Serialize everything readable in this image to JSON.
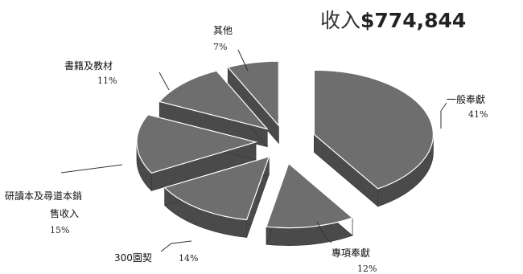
{
  "chart_data": {
    "type": "pie",
    "title_prefix": "收入",
    "title_amount": "$774,844",
    "slices": [
      {
        "label": "一般奉獻",
        "percent_text": "41%",
        "value": 41
      },
      {
        "label": "專項奉獻",
        "percent_text": "12%",
        "value": 12
      },
      {
        "label": "300園契",
        "percent_text": "14%",
        "value": 14
      },
      {
        "label": "研讀本及尋道本銷售收入",
        "percent_text": "15%",
        "value": 15
      },
      {
        "label": "書籍及教材",
        "percent_text": "11%",
        "value": 11
      },
      {
        "label": "其他",
        "percent_text": "7%",
        "value": 7
      }
    ],
    "colors": {
      "top": "#6e6e6e",
      "side": "#4a4a4a",
      "edge": "#3a3a3a"
    }
  }
}
